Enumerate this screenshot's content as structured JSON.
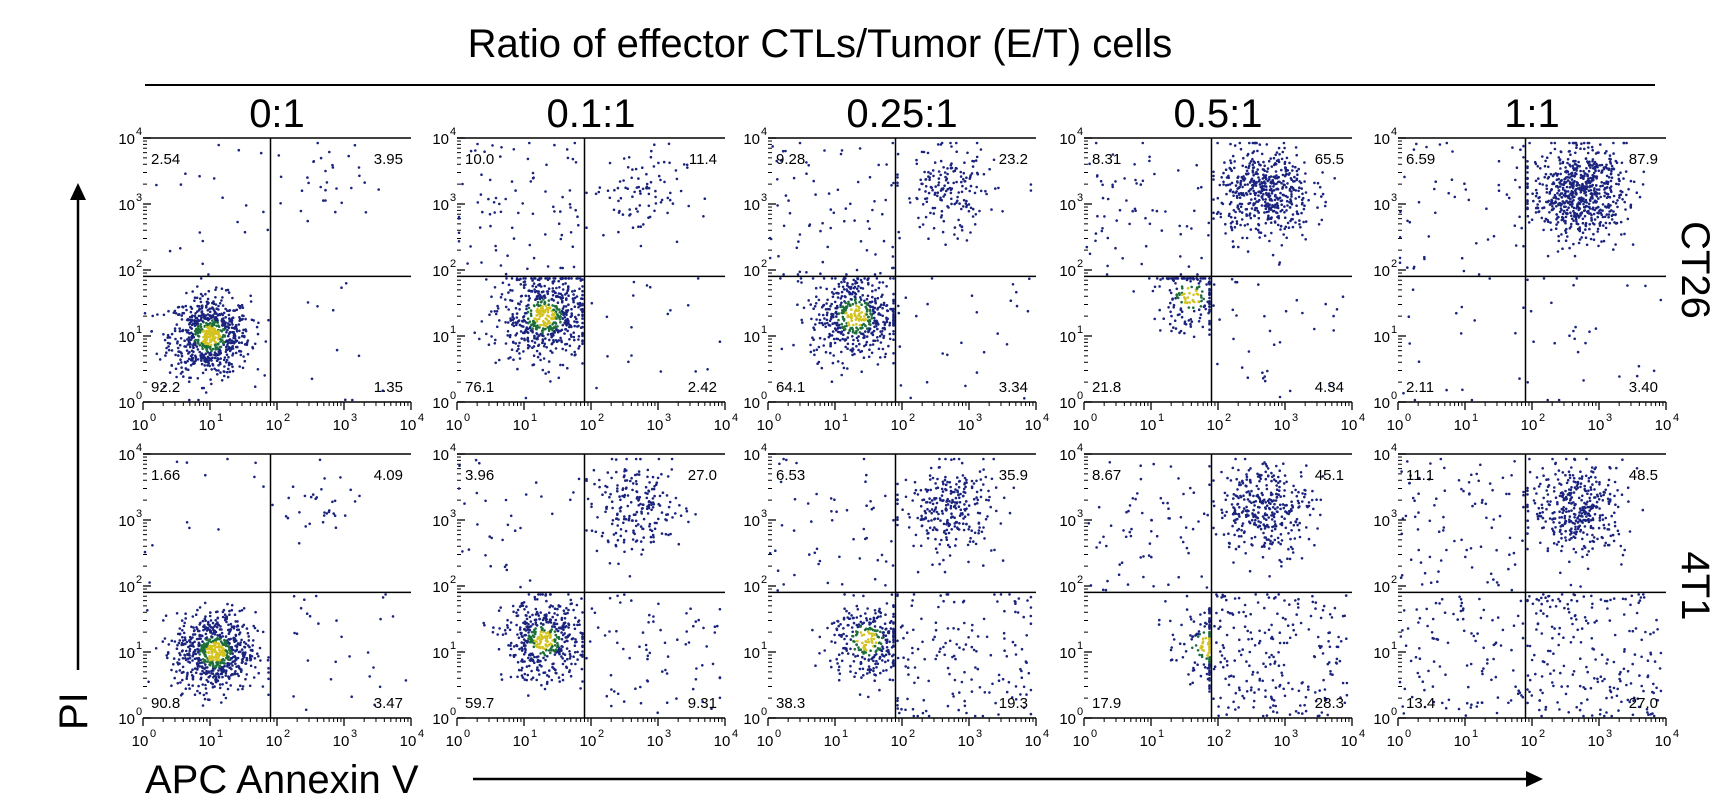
{
  "figure": {
    "title": "Ratio of effector CTLs/Tumor (E/T) cells",
    "x_axis_label": "APC Annexin V",
    "y_axis_label": "PI"
  },
  "chart_data": {
    "type": "scatter",
    "scale": "log",
    "grid": false,
    "xlim": [
      1,
      10000
    ],
    "ylim": [
      1,
      10000
    ],
    "tick_labels": [
      "10",
      "10",
      "10",
      "10",
      "10"
    ],
    "tick_exponents": [
      "0",
      "1",
      "2",
      "3",
      "4"
    ],
    "columns": [
      "0:1",
      "0.1:1",
      "0.25:1",
      "0.5:1",
      "1:1"
    ],
    "rows": [
      "CT26",
      "4T1"
    ],
    "panels": [
      [
        {
          "gate_x": 80,
          "gate_y": 80,
          "upper_left": "2.54",
          "upper_right": "3.95",
          "lower_left": "92.2",
          "lower_right": "1.35",
          "clusters": [
            {
              "x": 10,
              "y": 10,
              "n": 750,
              "spread": 0.3
            }
          ]
        },
        {
          "gate_x": 80,
          "gate_y": 80,
          "upper_left": "10.0",
          "upper_right": "11.4",
          "lower_left": "76.1",
          "lower_right": "2.42",
          "clusters": [
            {
              "x": 20,
              "y": 20,
              "n": 650,
              "spread": 0.33
            }
          ]
        },
        {
          "gate_x": 80,
          "gate_y": 80,
          "upper_left": "9.28",
          "upper_right": "23.2",
          "lower_left": "64.1",
          "lower_right": "3.34",
          "clusters": [
            {
              "x": 20,
              "y": 20,
              "n": 600,
              "spread": 0.33
            }
          ]
        },
        {
          "gate_x": 80,
          "gate_y": 80,
          "upper_left": "8.31",
          "upper_right": "65.5",
          "lower_left": "21.8",
          "lower_right": "4.34",
          "clusters": [
            {
              "x": 40,
              "y": 40,
              "n": 200,
              "spread": 0.28
            }
          ]
        },
        {
          "gate_x": 80,
          "gate_y": 80,
          "upper_left": "6.59",
          "upper_right": "87.9",
          "lower_left": "2.11",
          "lower_right": "3.40",
          "clusters": [
            {
              "x": 30,
              "y": 80,
              "n": 40,
              "spread": 0.35
            }
          ]
        }
      ],
      [
        {
          "gate_x": 80,
          "gate_y": 80,
          "upper_left": "1.66",
          "upper_right": "4.09",
          "lower_left": "90.8",
          "lower_right": "3.47",
          "clusters": [
            {
              "x": 12,
              "y": 10,
              "n": 760,
              "spread": 0.3
            }
          ]
        },
        {
          "gate_x": 80,
          "gate_y": 80,
          "upper_left": "3.96",
          "upper_right": "27.0",
          "lower_left": "59.7",
          "lower_right": "9.31",
          "clusters": [
            {
              "x": 20,
              "y": 15,
              "n": 500,
              "spread": 0.3
            }
          ]
        },
        {
          "gate_x": 80,
          "gate_y": 80,
          "upper_left": "6.53",
          "upper_right": "35.9",
          "lower_left": "38.3",
          "lower_right": "19.3",
          "clusters": [
            {
              "x": 30,
              "y": 15,
              "n": 340,
              "spread": 0.3
            }
          ]
        },
        {
          "gate_x": 80,
          "gate_y": 80,
          "upper_left": "8.67",
          "upper_right": "45.1",
          "lower_left": "17.9",
          "lower_right": "28.3",
          "clusters": [
            {
              "x": 70,
              "y": 12,
              "n": 260,
              "spread": 0.3
            }
          ]
        },
        {
          "gate_x": 80,
          "gate_y": 80,
          "upper_left": "11.1",
          "upper_right": "48.5",
          "lower_left": "13.4",
          "lower_right": "27.0",
          "clusters": [
            {
              "x": 90,
              "y": 12,
              "n": 200,
              "spread": 0.32
            }
          ]
        }
      ]
    ],
    "density_colors": [
      "#1a237e",
      "#1e6e3a",
      "#d4c21e",
      "#cc4a22"
    ],
    "sparse_dot_color": "#1a237e"
  }
}
